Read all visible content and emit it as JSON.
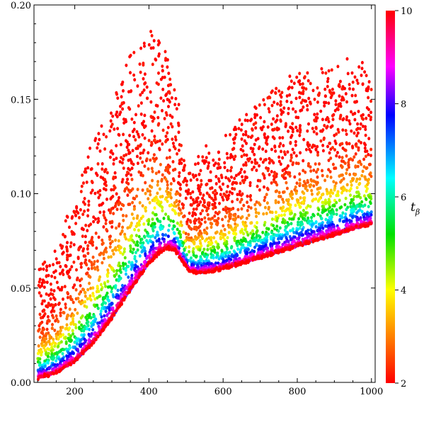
{
  "chart_data": {
    "type": "scatter",
    "title": "",
    "xlabel": "",
    "ylabel": "",
    "xlim": [
      90,
      1010
    ],
    "ylim": [
      0,
      0.2
    ],
    "x_ticks": [
      200,
      400,
      600,
      800,
      1000
    ],
    "y_ticks": [
      0.0,
      0.05,
      0.1,
      0.15,
      0.2
    ],
    "x_tick_labels": [
      "200",
      "400",
      "600",
      "800",
      "1000"
    ],
    "y_tick_labels": [
      "0.00",
      "0.05",
      "0.10",
      "0.15",
      "0.20"
    ],
    "grid": false,
    "colorbar": {
      "label": "tβ",
      "label_main": "t",
      "label_sub": "β",
      "range": [
        2,
        10
      ],
      "ticks": [
        2,
        4,
        6,
        8,
        10
      ],
      "tick_labels": [
        "2",
        "4",
        "6",
        "8",
        "10"
      ],
      "colormap": "rainbow (red = 2 → orange → yellow → green → cyan → blue → magenta → red = 10)"
    },
    "series_description": "Dense cloud of points colored by tβ. Lower envelope (high tβ, blue/magenta) rises from ~0.002 at x=100 to a peak ~0.071 near x=450, dips to ~0.058 near x=520, then rises linearly to ~0.083 at x=1000. Low tβ (red/orange) points scatter up to ~0.19 near x=410 and ~0.17 near x=960.",
    "lower_envelope": {
      "x": [
        100,
        150,
        200,
        250,
        300,
        350,
        400,
        430,
        450,
        470,
        490,
        510,
        530,
        560,
        600,
        700,
        800,
        900,
        1000
      ],
      "y": [
        0.002,
        0.005,
        0.011,
        0.021,
        0.034,
        0.049,
        0.063,
        0.069,
        0.071,
        0.07,
        0.064,
        0.059,
        0.058,
        0.0585,
        0.06,
        0.066,
        0.072,
        0.078,
        0.084
      ]
    },
    "upper_envelope": {
      "x": [
        100,
        150,
        200,
        250,
        300,
        350,
        400,
        420,
        450,
        480,
        500,
        550,
        600,
        650,
        700,
        800,
        900,
        960,
        1000
      ],
      "y": [
        0.06,
        0.073,
        0.1,
        0.13,
        0.15,
        0.175,
        0.185,
        0.19,
        0.175,
        0.15,
        0.11,
        0.125,
        0.13,
        0.14,
        0.15,
        0.165,
        0.168,
        0.175,
        0.16
      ]
    }
  }
}
